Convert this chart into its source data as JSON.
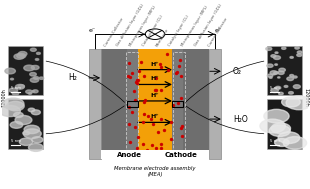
{
  "fig_width": 3.1,
  "fig_height": 1.89,
  "dpi": 100,
  "bg_color": "#ffffff",
  "title": "Membrane electrode assembly\n(MEA)",
  "anode_label": "Anode",
  "cathode_label": "Cathode",
  "h2_label": "H₂",
  "o2_label": "O₂",
  "h2o_label": "H₂O",
  "h_plus": "H⁺",
  "membrane_color": "#FFA500",
  "red_dot_color": "#cc0000",
  "blue_curve_color": "#1a6bc4",
  "circuit_color": "#000000",
  "label_texts": [
    "Current Collector",
    "Gas diffusion layer (GDL)",
    "Microporous layer (MPL)",
    "Catalyst layer (CL)",
    "Membrane",
    "Catalyst layer (CL)",
    "Microporous layer (MPL)",
    "Gas diffusion layer (GDL)",
    "Current Collector"
  ]
}
